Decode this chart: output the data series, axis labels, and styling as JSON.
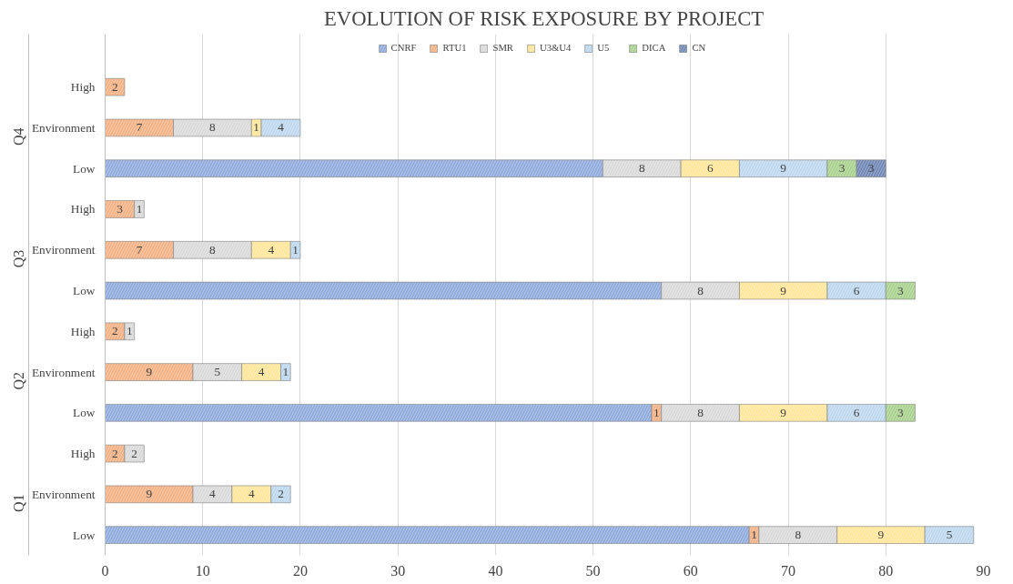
{
  "chart_data": {
    "type": "bar",
    "orientation": "horizontal",
    "stacked": true,
    "title": "EVOLUTION OF RISK EXPOSURE BY PROJECT",
    "categories": [
      "High",
      "Environment",
      "Low",
      "High",
      "Environment",
      "Low",
      "High",
      "Environment",
      "Low",
      "High",
      "Environment",
      "Low"
    ],
    "annotations": [
      "Q4",
      "Q3",
      "Q2",
      "Q1"
    ],
    "series": [
      {
        "name": "CNRF",
        "color": "#8faadc",
        "values": [
          null,
          null,
          51,
          null,
          null,
          57,
          null,
          null,
          56,
          null,
          null,
          66
        ],
        "value_labels": [
          null,
          null,
          null,
          null,
          null,
          null,
          null,
          null,
          null,
          null,
          null,
          null
        ]
      },
      {
        "name": "RTU1",
        "color": "#f4b183",
        "values": [
          2,
          7,
          null,
          3,
          7,
          null,
          2,
          9,
          1,
          2,
          9,
          1
        ],
        "value_labels": [
          "2",
          "7",
          null,
          "3",
          "7",
          null,
          "2",
          "9",
          "1",
          "2",
          "9",
          "1"
        ]
      },
      {
        "name": "SMR",
        "color": "#d9d9d9",
        "values": [
          null,
          8,
          8,
          1,
          8,
          8,
          1,
          5,
          8,
          2,
          4,
          8
        ],
        "value_labels": [
          null,
          "8",
          "8",
          "1",
          "8",
          "8",
          "1",
          "5",
          "8",
          "2",
          "4",
          "8"
        ]
      },
      {
        "name": "U3&U4",
        "color": "#ffe699",
        "values": [
          null,
          1,
          6,
          null,
          4,
          9,
          null,
          4,
          9,
          null,
          4,
          9
        ],
        "value_labels": [
          null,
          "1",
          "6",
          null,
          "4",
          "9",
          null,
          "4",
          "9",
          null,
          "4",
          "9"
        ]
      },
      {
        "name": "U5",
        "color": "#bdd7ee",
        "values": [
          null,
          4,
          9,
          null,
          1,
          6,
          null,
          1,
          6,
          null,
          2,
          5
        ],
        "value_labels": [
          null,
          "4",
          "9",
          null,
          "1",
          "6",
          null,
          "1",
          "6",
          null,
          "2",
          "5"
        ]
      },
      {
        "name": "DICA",
        "color": "#a9d18e",
        "values": [
          null,
          null,
          3,
          null,
          null,
          3,
          null,
          null,
          3,
          null,
          null,
          null
        ],
        "value_labels": [
          null,
          null,
          "3",
          null,
          null,
          "3",
          null,
          null,
          "3",
          null,
          null,
          null
        ]
      },
      {
        "name": "CN",
        "color": "#6f86b5",
        "values": [
          null,
          null,
          3,
          null,
          null,
          null,
          null,
          null,
          null,
          null,
          null,
          null
        ],
        "value_labels": [
          null,
          null,
          "3",
          null,
          null,
          null,
          null,
          null,
          null,
          null,
          null,
          null
        ]
      }
    ],
    "xlim": [
      0,
      90
    ],
    "xticks": [
      0,
      10,
      20,
      30,
      40,
      50,
      60,
      70,
      80,
      90
    ],
    "grid": "x",
    "legend": "top"
  }
}
